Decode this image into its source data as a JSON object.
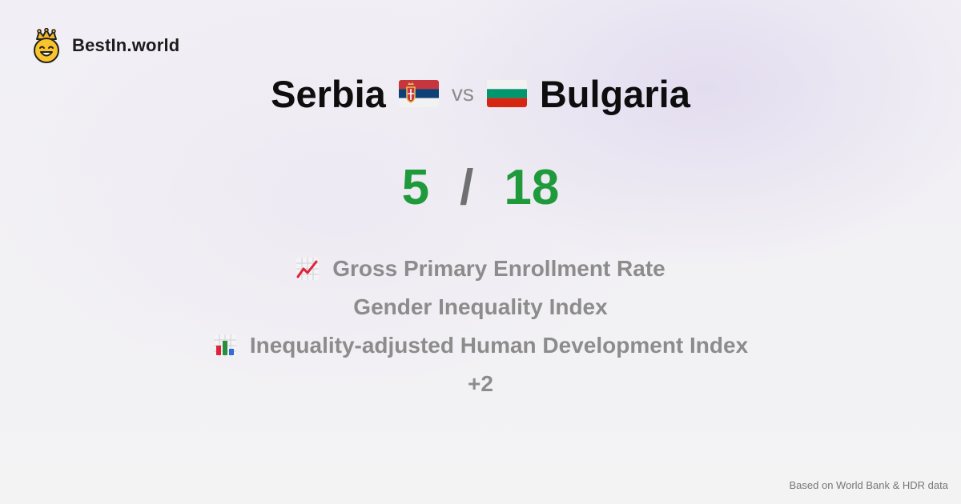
{
  "brand": {
    "name": "BestIn.world",
    "logo_icon": "smiling-crown-face-icon"
  },
  "comparison": {
    "left_country": "Serbia",
    "left_flag_icon": "serbia-flag-icon",
    "vs_label": "vs",
    "right_country": "Bulgaria",
    "right_flag_icon": "bulgaria-flag-icon"
  },
  "score": {
    "left": "5",
    "separator": "/",
    "right": "18",
    "color": "#1f9a3b"
  },
  "metrics": [
    {
      "label": "Gross Primary Enrollment Rate",
      "icon": "chart-increasing-icon"
    },
    {
      "label": "Gender Inequality Index",
      "icon": ""
    },
    {
      "label": "Inequality-adjusted Human Development Index",
      "icon": "bar-chart-icon"
    }
  ],
  "more": "+2",
  "footer": {
    "source": "Based on World Bank & HDR data"
  }
}
